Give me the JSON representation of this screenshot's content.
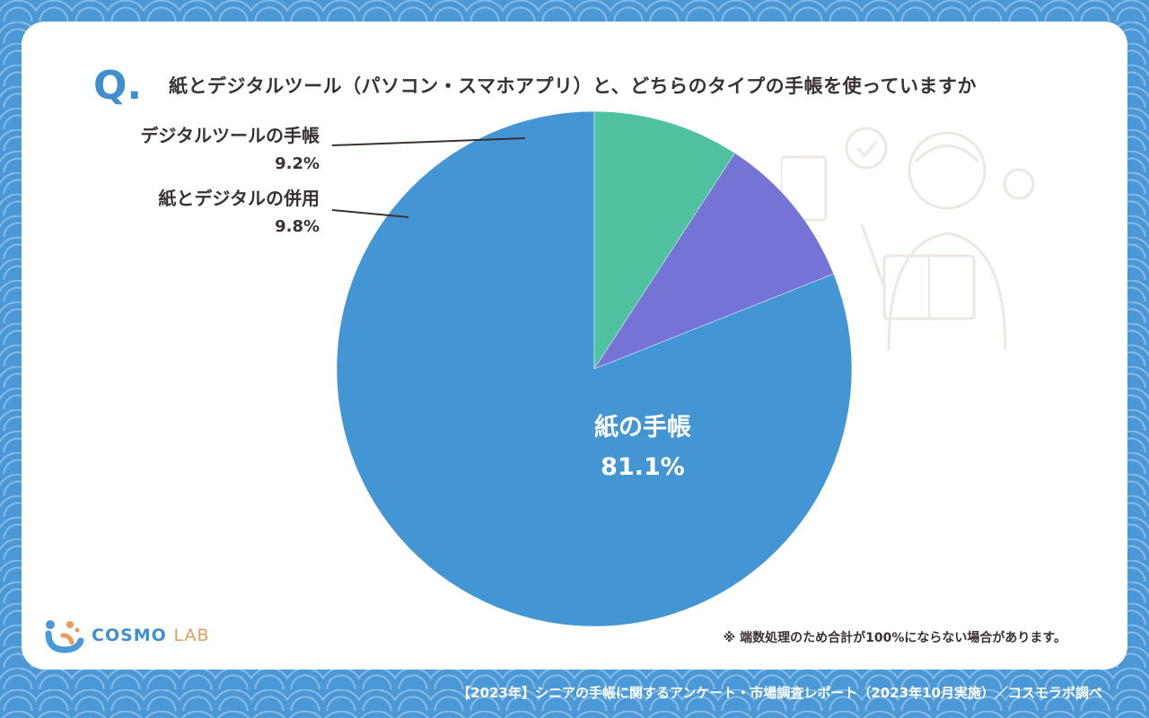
{
  "question": {
    "mark": "Q.",
    "text": "紙とデジタルツール（パソコン・スマホアプリ）と、どちらのタイプの手帳を使っていますか"
  },
  "chart_data": {
    "type": "pie",
    "title": "",
    "slices": [
      {
        "label": "紙の手帳",
        "value": 81.1,
        "value_label": "81.1%",
        "color": "#4396d3"
      },
      {
        "label": "紙とデジタルの併用",
        "value": 9.8,
        "value_label": "9.8%",
        "color": "#7574d6"
      },
      {
        "label": "デジタルツールの手帳",
        "value": 9.2,
        "value_label": "9.2%",
        "color": "#4fc1a1"
      }
    ],
    "start_angle_deg": 0,
    "direction": "counterclockwise"
  },
  "note": "※ 端数処理のため合計が100%にならない場合があります。",
  "logo": {
    "main": "COSMO",
    "sub": "LAB"
  },
  "footer": "【2023年】シニアの手帳に関するアンケート・市場調査レポート（2023年10月実施）／コスモラボ調べ"
}
